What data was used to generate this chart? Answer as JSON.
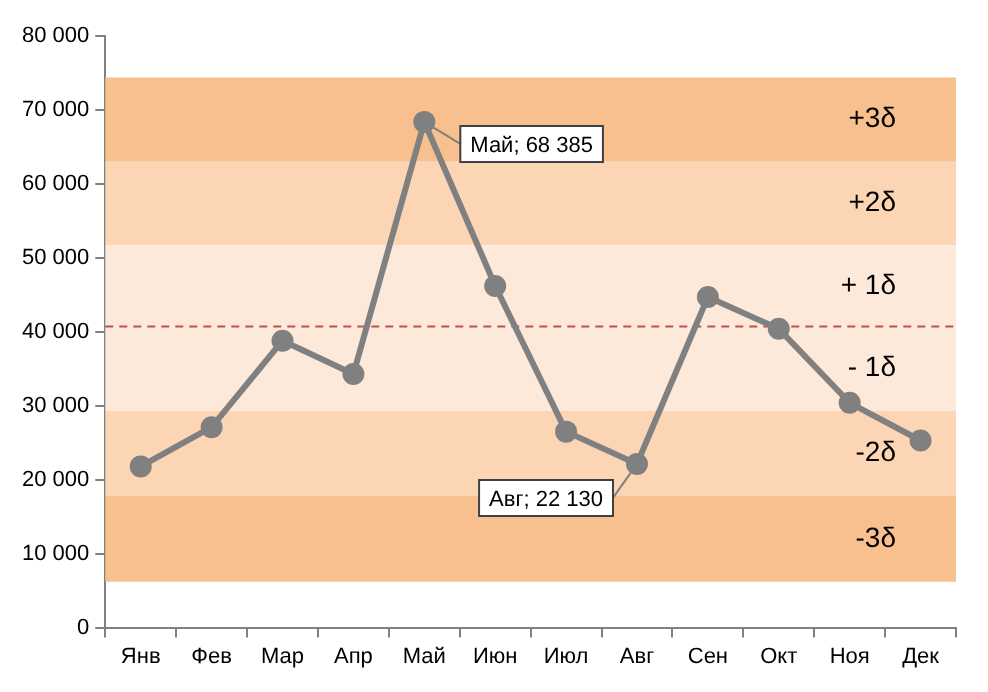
{
  "chart_data": {
    "type": "line",
    "categories": [
      "Янв",
      "Фев",
      "Мар",
      "Апр",
      "Май",
      "Июн",
      "Июл",
      "Авг",
      "Сен",
      "Окт",
      "Ноя",
      "Дек"
    ],
    "series": [
      {
        "color": "#808080",
        "values": [
          21800,
          27100,
          38800,
          34300,
          68385,
          46200,
          26500,
          22130,
          44700,
          40400,
          30400,
          25300
        ]
      }
    ],
    "ylim": [
      0,
      80000
    ],
    "yticks": [
      {
        "value": 0,
        "label": "0"
      },
      {
        "value": 10000,
        "label": "10 000"
      },
      {
        "value": 20000,
        "label": "20 000"
      },
      {
        "value": 30000,
        "label": "30 000"
      },
      {
        "value": 40000,
        "label": "40 000"
      },
      {
        "value": 50000,
        "label": "50 000"
      },
      {
        "value": 60000,
        "label": "60 000"
      },
      {
        "value": 70000,
        "label": "70 000"
      },
      {
        "value": 80000,
        "label": "80 000"
      }
    ],
    "bands": [
      {
        "axis": "y",
        "from": 63000,
        "to": 74400,
        "label": "+3δ",
        "color": "#f8c08e"
      },
      {
        "axis": "y",
        "from": 51700,
        "to": 63000,
        "label": "+2δ",
        "color": "#fbd5b4"
      },
      {
        "axis": "y",
        "from": 40700,
        "to": 51700,
        "label": "+ 1δ",
        "color": "#fde9da"
      },
      {
        "axis": "y",
        "from": 29300,
        "to": 40700,
        "label": "- 1δ",
        "color": "#fde9da"
      },
      {
        "axis": "y",
        "from": 17800,
        "to": 29300,
        "label": "-2δ",
        "color": "#fbd5b4"
      },
      {
        "axis": "y",
        "from": 6200,
        "to": 17800,
        "label": "-3δ",
        "color": "#f8c08e"
      }
    ],
    "ref_lines": [
      {
        "axis": "y",
        "value": 40700,
        "color": "#c0504d",
        "line_style": "dashed"
      }
    ],
    "annotations": [
      {
        "text": "Май; 68 385",
        "x": "Май",
        "y": 68385
      },
      {
        "text": "Авг; 22 130",
        "x": "Авг",
        "y": 22130
      }
    ],
    "marker": "circle",
    "line_style": "solid",
    "grid": false,
    "legend": false
  }
}
